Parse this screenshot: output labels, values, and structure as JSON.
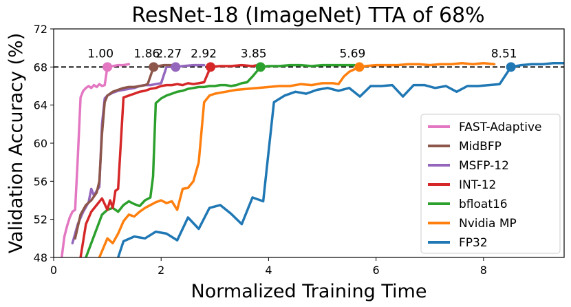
{
  "chart_data": {
    "type": "line",
    "title": "ResNet-18 (ImageNet) TTA of 68%",
    "xlabel": "Normalized Training Time",
    "ylabel": "Validation Accuracy (%)",
    "xlim": [
      0,
      9.5
    ],
    "ylim": [
      48,
      72
    ],
    "xticks": [
      0,
      2,
      4,
      6,
      8
    ],
    "yticks": [
      48,
      52,
      56,
      60,
      64,
      68,
      72
    ],
    "grid": false,
    "legend_position": "lower-right",
    "target_accuracy": 68,
    "series": [
      {
        "name": "FAST-Adaptive",
        "color": "#e377c2",
        "x": [
          0.15,
          0.2,
          0.25,
          0.3,
          0.35,
          0.4,
          0.45,
          0.5,
          0.55,
          0.6,
          0.65,
          0.7,
          0.75,
          0.8,
          0.85,
          0.9,
          0.95,
          1.0,
          1.1,
          1.2,
          1.3,
          1.4
        ],
        "y": [
          48.0,
          50.2,
          51.3,
          52.2,
          52.8,
          53.0,
          58.5,
          64.8,
          65.5,
          65.8,
          66.0,
          65.8,
          66.1,
          65.9,
          66.2,
          66.0,
          66.1,
          68.0,
          68.1,
          68.2,
          68.2,
          68.3
        ],
        "tta": 1.0,
        "tta_label": "1.00"
      },
      {
        "name": "MidBFP",
        "color": "#8c564b",
        "x": [
          0.4,
          0.5,
          0.6,
          0.7,
          0.8,
          0.85,
          0.9,
          0.95,
          1.0,
          1.1,
          1.2,
          1.3,
          1.4,
          1.5,
          1.6,
          1.7,
          1.75,
          1.86,
          1.95,
          2.05,
          2.15,
          2.3
        ],
        "y": [
          50.0,
          52.5,
          53.5,
          54.0,
          54.8,
          56.0,
          61.0,
          64.3,
          65.0,
          65.4,
          65.6,
          65.8,
          65.9,
          65.9,
          66.0,
          66.1,
          66.2,
          68.0,
          68.1,
          68.2,
          68.2,
          68.2
        ],
        "tta": 1.86,
        "tta_label": "1.86"
      },
      {
        "name": "MSFP-12",
        "color": "#9467bd",
        "x": [
          0.35,
          0.45,
          0.55,
          0.65,
          0.7,
          0.75,
          0.8,
          0.85,
          0.9,
          0.95,
          1.0,
          1.1,
          1.2,
          1.3,
          1.4,
          1.5,
          1.6,
          1.7,
          1.8,
          1.9,
          2.0,
          2.1,
          2.27,
          2.4,
          2.6,
          2.8
        ],
        "y": [
          49.5,
          51.5,
          52.8,
          53.8,
          55.2,
          54.5,
          55.0,
          55.4,
          62.0,
          64.7,
          65.0,
          65.3,
          65.5,
          65.6,
          65.7,
          65.8,
          66.0,
          66.1,
          66.1,
          66.2,
          66.3,
          68.0,
          68.0,
          68.1,
          68.2,
          68.2
        ],
        "tta": 2.27,
        "tta_label": "2.27"
      },
      {
        "name": "INT-12",
        "color": "#d62728",
        "x": [
          0.5,
          0.6,
          0.7,
          0.8,
          0.9,
          1.0,
          1.05,
          1.1,
          1.15,
          1.2,
          1.3,
          1.4,
          1.5,
          1.6,
          1.7,
          1.8,
          1.9,
          2.0,
          2.1,
          2.2,
          2.3,
          2.4,
          2.5,
          2.6,
          2.7,
          2.8,
          2.92,
          3.1,
          3.3,
          3.5,
          3.7,
          3.8
        ],
        "y": [
          48.0,
          51.5,
          52.8,
          53.5,
          54.2,
          53.0,
          54.0,
          53.2,
          55.0,
          55.2,
          64.8,
          65.0,
          65.2,
          65.4,
          65.5,
          65.7,
          65.8,
          66.0,
          66.1,
          66.1,
          66.2,
          66.1,
          66.3,
          66.2,
          66.3,
          66.4,
          68.0,
          68.1,
          68.1,
          68.2,
          68.1,
          68.2
        ],
        "tta": 2.92,
        "tta_label": "2.92"
      },
      {
        "name": "bfloat16",
        "color": "#2ca02c",
        "x": [
          0.6,
          0.7,
          0.8,
          0.9,
          1.0,
          1.1,
          1.2,
          1.3,
          1.4,
          1.5,
          1.6,
          1.7,
          1.8,
          1.85,
          1.9,
          2.0,
          2.1,
          2.2,
          2.3,
          2.4,
          2.5,
          2.6,
          2.7,
          2.8,
          2.9,
          3.0,
          3.1,
          3.2,
          3.3,
          3.4,
          3.5,
          3.6,
          3.7,
          3.85,
          4.0,
          4.2,
          4.4,
          4.6,
          4.8,
          5.0,
          5.2,
          5.4,
          5.6
        ],
        "y": [
          48.0,
          49.5,
          51.0,
          52.5,
          53.0,
          53.2,
          52.8,
          53.5,
          53.9,
          53.6,
          53.4,
          54.0,
          54.3,
          56.5,
          64.2,
          64.7,
          65.0,
          65.2,
          65.4,
          65.5,
          65.7,
          65.8,
          65.9,
          65.9,
          66.0,
          66.0,
          66.1,
          66.1,
          66.0,
          66.1,
          66.3,
          66.4,
          67.0,
          68.0,
          68.1,
          68.1,
          68.2,
          68.2,
          68.1,
          68.2,
          68.2,
          68.2,
          68.2
        ],
        "tta": 3.85,
        "tta_label": "3.85"
      },
      {
        "name": "Nvidia MP",
        "color": "#ff7f0e",
        "x": [
          0.85,
          1.0,
          1.1,
          1.2,
          1.3,
          1.4,
          1.5,
          1.6,
          1.7,
          1.8,
          1.9,
          2.0,
          2.1,
          2.2,
          2.3,
          2.4,
          2.5,
          2.6,
          2.7,
          2.8,
          2.9,
          3.0,
          3.2,
          3.4,
          3.6,
          3.8,
          4.0,
          4.2,
          4.4,
          4.6,
          4.8,
          5.0,
          5.2,
          5.3,
          5.4,
          5.5,
          5.69,
          5.8,
          6.0,
          6.2,
          6.4,
          6.6,
          6.8,
          7.0,
          7.2,
          7.4,
          7.6,
          7.8,
          8.0,
          8.2
        ],
        "y": [
          48.0,
          50.0,
          49.5,
          50.5,
          51.8,
          52.5,
          52.3,
          52.8,
          53.2,
          53.5,
          53.8,
          54.0,
          53.7,
          53.9,
          53.0,
          55.2,
          55.3,
          56.0,
          58.0,
          64.3,
          65.0,
          65.2,
          65.4,
          65.6,
          65.7,
          65.8,
          65.9,
          66.0,
          66.0,
          66.2,
          66.1,
          66.3,
          66.3,
          66.2,
          67.0,
          67.5,
          68.0,
          68.1,
          68.2,
          68.2,
          68.2,
          68.3,
          68.3,
          68.2,
          68.3,
          68.3,
          68.4,
          68.3,
          68.4,
          68.3
        ],
        "tta": 5.69,
        "tta_label": "5.69"
      },
      {
        "name": "FP32",
        "color": "#1f77b4",
        "x": [
          1.2,
          1.3,
          1.5,
          1.7,
          1.9,
          2.1,
          2.3,
          2.5,
          2.7,
          2.9,
          3.1,
          3.3,
          3.5,
          3.7,
          3.9,
          4.1,
          4.3,
          4.5,
          4.7,
          4.9,
          5.1,
          5.3,
          5.5,
          5.7,
          5.9,
          6.1,
          6.3,
          6.5,
          6.7,
          6.9,
          7.1,
          7.3,
          7.5,
          7.7,
          7.9,
          8.1,
          8.3,
          8.51,
          8.7,
          8.9,
          9.1,
          9.3,
          9.5
        ],
        "y": [
          48.0,
          49.7,
          50.2,
          50.0,
          50.7,
          50.5,
          49.8,
          52.2,
          51.0,
          53.2,
          53.5,
          52.6,
          51.5,
          54.3,
          53.9,
          64.3,
          65.0,
          65.4,
          65.2,
          65.6,
          65.8,
          65.5,
          65.8,
          64.9,
          66.0,
          66.0,
          66.1,
          64.9,
          66.1,
          66.1,
          65.8,
          66.0,
          65.4,
          66.0,
          66.0,
          66.1,
          66.2,
          68.0,
          68.2,
          68.3,
          68.3,
          68.4,
          68.4
        ],
        "tta": 8.51,
        "tta_label": "8.51"
      }
    ]
  }
}
